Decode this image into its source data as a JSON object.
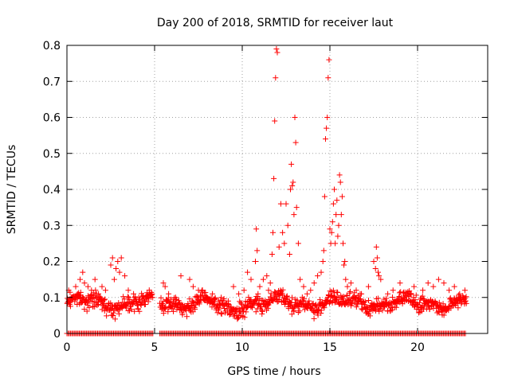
{
  "chart_data": {
    "type": "scatter",
    "title": "Day 200 of 2018, SRMTID for receiver laut",
    "xlabel": "GPS time / hours",
    "ylabel": "SRMTID / TECUs",
    "xlim": [
      0,
      24
    ],
    "ylim": [
      0,
      0.8
    ],
    "xticks": [
      0,
      5,
      10,
      15,
      20
    ],
    "yticks": [
      0,
      0.1,
      0.2,
      0.3,
      0.4,
      0.5,
      0.6,
      0.7,
      0.8
    ],
    "grid": true,
    "marker": "+",
    "color": "#ff0000",
    "series": [
      {
        "name": "SRMTID",
        "note": "dense background samples approximated by a band model",
        "band": {
          "segments": [
            [
              0,
              4.9
            ],
            [
              5.3,
              22.8
            ]
          ],
          "base": 0.085,
          "spread": 0.03,
          "floor": 0.04
        },
        "x": [
          0.1,
          0.2,
          0.35,
          0.5,
          0.6,
          0.75,
          0.9,
          1.0,
          1.2,
          1.4,
          1.6,
          1.8,
          2.0,
          2.2,
          2.5,
          2.6,
          2.7,
          2.8,
          2.9,
          3.0,
          3.1,
          3.3,
          3.5,
          3.8,
          4.1,
          4.4,
          4.7,
          5.5,
          5.6,
          5.8,
          6.2,
          6.5,
          7.0,
          7.2,
          7.5,
          8.0,
          8.3,
          8.8,
          9.2,
          9.5,
          9.8,
          10.1,
          10.3,
          10.5,
          10.75,
          10.8,
          10.85,
          10.9,
          11.0,
          11.2,
          11.4,
          11.5,
          11.6,
          11.7,
          11.75,
          11.8,
          11.85,
          11.9,
          11.95,
          12.0,
          12.1,
          12.2,
          12.3,
          12.4,
          12.5,
          12.6,
          12.7,
          12.75,
          12.8,
          12.85,
          12.9,
          12.95,
          13.0,
          13.05,
          13.1,
          13.2,
          13.3,
          13.5,
          13.7,
          13.9,
          14.1,
          14.3,
          14.5,
          14.6,
          14.65,
          14.7,
          14.75,
          14.8,
          14.85,
          14.9,
          14.95,
          15.0,
          15.05,
          15.1,
          15.15,
          15.2,
          15.25,
          15.3,
          15.35,
          15.4,
          15.45,
          15.5,
          15.55,
          15.6,
          15.65,
          15.7,
          15.75,
          15.8,
          15.85,
          15.9,
          16.0,
          16.2,
          16.5,
          16.8,
          17.2,
          17.5,
          17.6,
          17.65,
          17.7,
          17.75,
          17.8,
          17.9,
          18.3,
          18.6,
          19.0,
          19.4,
          19.8,
          20.3,
          20.6,
          20.9,
          21.2,
          21.5,
          21.8,
          22.1,
          22.4,
          22.7
        ],
        "y": [
          0.12,
          0.09,
          0.1,
          0.13,
          0.11,
          0.15,
          0.17,
          0.14,
          0.13,
          0.12,
          0.15,
          0.11,
          0.13,
          0.12,
          0.19,
          0.21,
          0.15,
          0.18,
          0.2,
          0.17,
          0.21,
          0.16,
          0.12,
          0.11,
          0.1,
          0.09,
          0.11,
          0.14,
          0.13,
          0.11,
          0.1,
          0.16,
          0.15,
          0.13,
          0.12,
          0.1,
          0.11,
          0.1,
          0.09,
          0.13,
          0.11,
          0.12,
          0.17,
          0.15,
          0.2,
          0.29,
          0.23,
          0.11,
          0.13,
          0.15,
          0.16,
          0.12,
          0.14,
          0.22,
          0.28,
          0.43,
          0.59,
          0.71,
          0.79,
          0.78,
          0.24,
          0.36,
          0.28,
          0.25,
          0.36,
          0.3,
          0.22,
          0.4,
          0.47,
          0.41,
          0.42,
          0.33,
          0.6,
          0.53,
          0.35,
          0.25,
          0.15,
          0.13,
          0.11,
          0.12,
          0.14,
          0.16,
          0.17,
          0.2,
          0.23,
          0.38,
          0.54,
          0.57,
          0.6,
          0.71,
          0.76,
          0.29,
          0.25,
          0.28,
          0.31,
          0.36,
          0.4,
          0.25,
          0.33,
          0.37,
          0.27,
          0.3,
          0.44,
          0.42,
          0.33,
          0.38,
          0.25,
          0.19,
          0.2,
          0.15,
          0.13,
          0.14,
          0.12,
          0.11,
          0.13,
          0.2,
          0.18,
          0.24,
          0.21,
          0.17,
          0.16,
          0.15,
          0.11,
          0.12,
          0.14,
          0.11,
          0.13,
          0.12,
          0.14,
          0.13,
          0.15,
          0.14,
          0.12,
          0.13,
          0.11,
          0.12
        ]
      }
    ],
    "floor_markers": {
      "y": 0,
      "x_ranges": [
        [
          0,
          4.9
        ],
        [
          5.3,
          22.8
        ]
      ]
    }
  }
}
